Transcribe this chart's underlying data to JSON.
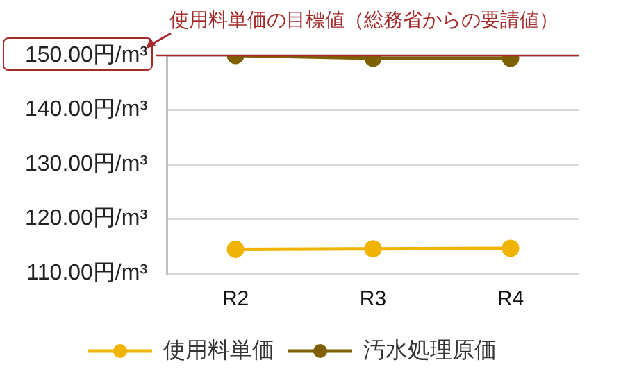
{
  "chart_data": {
    "type": "line",
    "categories": [
      "R2",
      "R3",
      "R4"
    ],
    "series": [
      {
        "name": "使用料単価",
        "color": "#f0b400",
        "values": [
          114.4,
          114.5,
          114.6
        ]
      },
      {
        "name": "汚水処理原価",
        "color": "#7f6000",
        "values": [
          150,
          149.5,
          149.5
        ]
      }
    ],
    "ylim": [
      110,
      150
    ],
    "yticks": [
      {
        "value": 110,
        "label": "110.00円/m³"
      },
      {
        "value": 120,
        "label": "120.00円/m³"
      },
      {
        "value": 130,
        "label": "130.00円/m³"
      },
      {
        "value": 140,
        "label": "140.00円/m³"
      },
      {
        "value": 150,
        "label": "150.00円/m³"
      }
    ],
    "ref_lines": [
      {
        "axis": "y",
        "value": 150,
        "label": "使用料単価の目標値（総務省からの要請値）",
        "color": "#a52a2a"
      }
    ],
    "grid": "y",
    "legend": "bottom",
    "marker": "circle",
    "line_style": "solid"
  }
}
